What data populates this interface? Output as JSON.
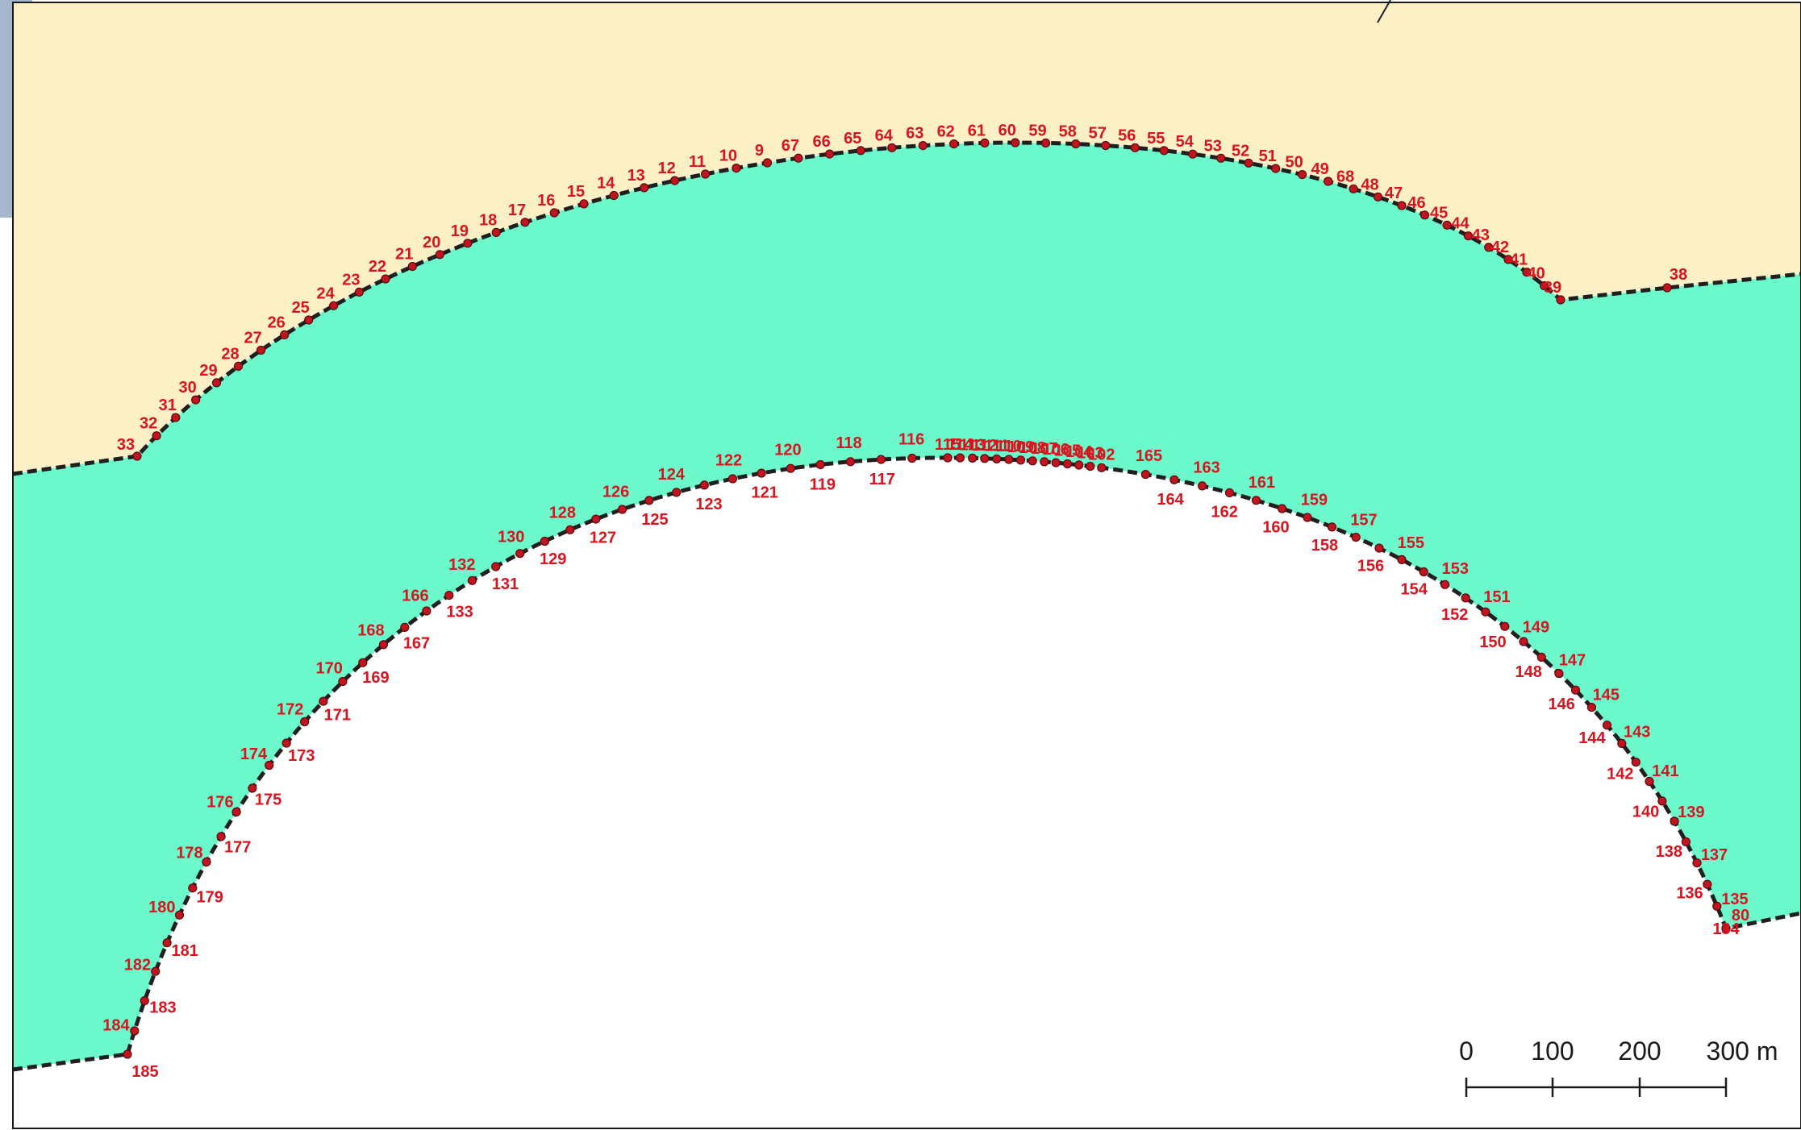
{
  "colors": {
    "background_corner": "#a5b6cf",
    "upper_zone": "#fdefc6",
    "band": "#6cf9cb",
    "lower_zone": "#ffffff",
    "boundary": "#1f1f1f",
    "vertex": "#c0141f",
    "label": "#d8141f"
  },
  "scale_bar": {
    "labels": [
      "0",
      "100",
      "200",
      "300 m"
    ]
  },
  "outer_boundary": {
    "end_labels": [
      "33",
      "38"
    ],
    "arc_labels": [
      "32",
      "31",
      "30",
      "29",
      "28",
      "27",
      "26",
      "25",
      "24",
      "23",
      "22",
      "21",
      "20",
      "19",
      "18",
      "17",
      "16",
      "15",
      "14",
      "13",
      "12",
      "11",
      "10",
      "9",
      "67",
      "66",
      "65",
      "64",
      "63",
      "62",
      "61",
      "60",
      "59",
      "58",
      "57",
      "56",
      "55",
      "54",
      "53",
      "52",
      "51",
      "50",
      "49",
      "68",
      "48",
      "47",
      "46",
      "45",
      "44",
      "43",
      "42",
      "41",
      "40",
      "39"
    ]
  },
  "inner_boundary": {
    "end_labels": [
      "185",
      "80"
    ],
    "left_labels": [
      "184",
      "183",
      "182",
      "181",
      "180",
      "179",
      "178",
      "177",
      "176",
      "175",
      "174",
      "173",
      "172",
      "171",
      "170",
      "169",
      "168",
      "167",
      "166",
      "133",
      "132",
      "131",
      "130",
      "129",
      "128",
      "127",
      "126",
      "125",
      "124",
      "123",
      "122",
      "121",
      "120",
      "119",
      "118",
      "117",
      "116"
    ],
    "top_labels": [
      "115",
      "114",
      "113",
      "112",
      "111",
      "110",
      "109",
      "108",
      "107",
      "106",
      "105",
      "104",
      "103",
      "102"
    ],
    "right_labels": [
      "165",
      "164",
      "163",
      "162",
      "161",
      "160",
      "159",
      "158",
      "157",
      "156",
      "155",
      "154",
      "153",
      "152",
      "151",
      "150",
      "149",
      "148",
      "147",
      "146",
      "145",
      "144",
      "143",
      "142",
      "141",
      "140",
      "139",
      "138",
      "137",
      "136",
      "135",
      "134"
    ]
  }
}
